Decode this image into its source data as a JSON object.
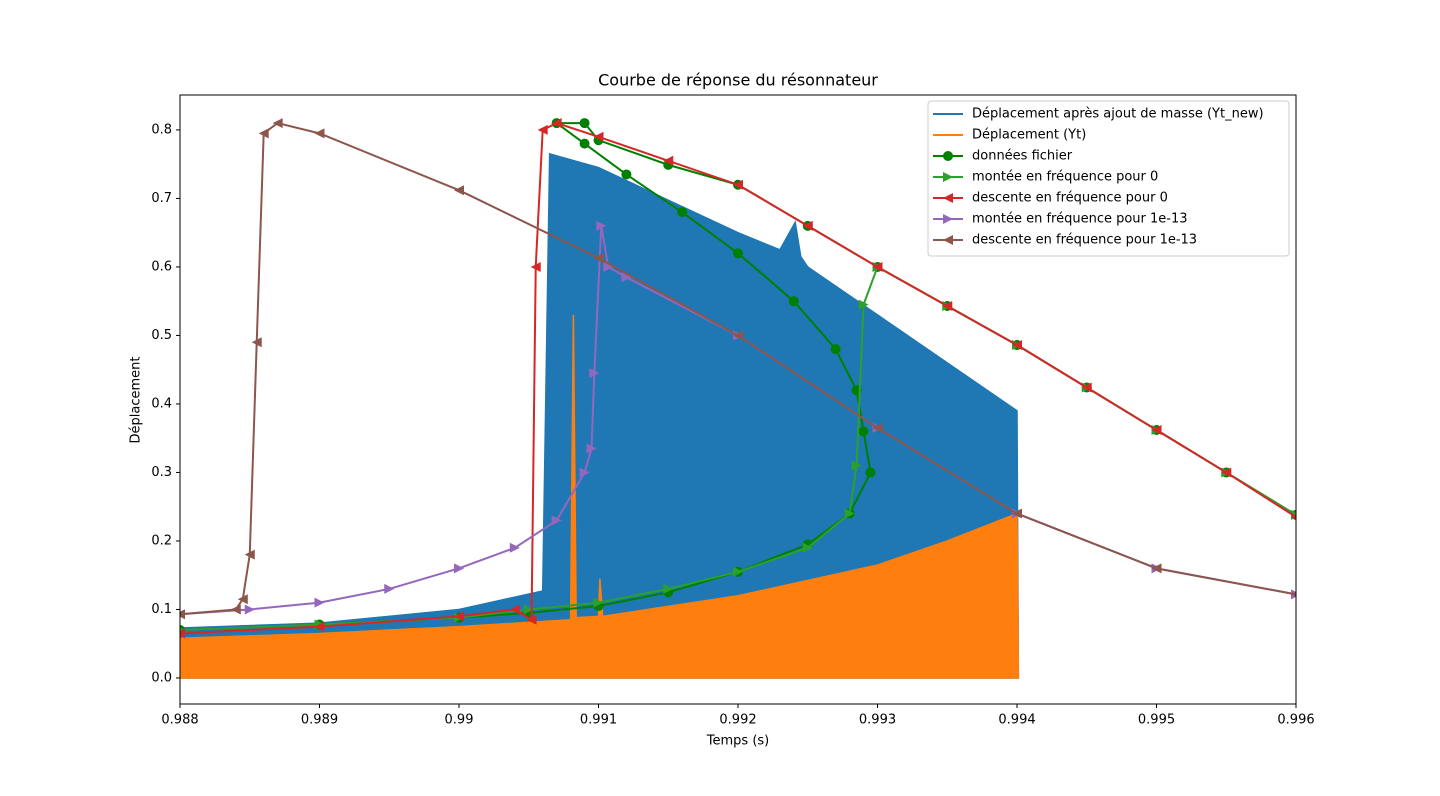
{
  "chart_data": {
    "type": "line",
    "title": "Courbe de réponse du résonnateur",
    "xlabel": "Temps (s)",
    "ylabel": "Déplacement",
    "xlim": [
      0.988,
      0.996
    ],
    "ylim": [
      -0.038,
      0.851
    ],
    "xticks": [
      0.988,
      0.989,
      0.99,
      0.991,
      0.992,
      0.993,
      0.994,
      0.995,
      0.996
    ],
    "yticks": [
      {
        "value": 0,
        "label": "0.0"
      },
      0.1,
      0.2,
      0.3,
      0.4,
      0.5,
      0.6,
      0.7,
      0.8
    ],
    "legend": "upper right",
    "series": [
      {
        "name": "Déplacement après ajout de masse (Yt_new)",
        "color": "#1f77b4",
        "marker": null,
        "fill_to_zero": true,
        "x": [
          0.988,
          0.989,
          0.99,
          0.9906,
          0.99065,
          0.991,
          0.992,
          0.9923,
          0.99241,
          0.99245,
          0.9925,
          0.993,
          0.994,
          0.99401
        ],
        "values": [
          0.073,
          0.08,
          0.1,
          0.127,
          0.765,
          0.745,
          0.65,
          0.625,
          0.665,
          0.615,
          0.6,
          0.53,
          0.39,
          0
        ]
      },
      {
        "name": "Déplacement (Yt)",
        "color": "#ff7f0e",
        "marker": null,
        "fill_to_zero": true,
        "x": [
          0.988,
          0.989,
          0.99,
          0.9908,
          0.99082,
          0.99084,
          0.991,
          0.99101,
          0.99103,
          0.992,
          0.993,
          0.9935,
          0.994,
          0.99401
        ],
        "values": [
          0.058,
          0.065,
          0.075,
          0.085,
          0.53,
          0.088,
          0.09,
          0.145,
          0.09,
          0.12,
          0.165,
          0.2,
          0.24,
          0
        ]
      },
      {
        "name": "données fichier",
        "color": "#008000",
        "marker": "o",
        "x": [
          0.988,
          0.989,
          0.99,
          0.9905,
          0.991,
          0.9915,
          0.992,
          0.9925,
          0.9928,
          0.99295,
          0.9929,
          0.99285,
          0.9927,
          0.9924,
          0.992,
          0.9916,
          0.9912,
          0.9909,
          0.9907,
          0.9909,
          0.991,
          0.9915,
          0.992,
          0.9925,
          0.993,
          0.9935,
          0.994,
          0.9945,
          0.995,
          0.9955,
          0.996
        ],
        "values": [
          0.07,
          0.078,
          0.088,
          0.095,
          0.105,
          0.125,
          0.155,
          0.195,
          0.24,
          0.3,
          0.36,
          0.42,
          0.48,
          0.55,
          0.62,
          0.68,
          0.735,
          0.78,
          0.81,
          0.81,
          0.785,
          0.749,
          0.72,
          0.66,
          0.6,
          0.543,
          0.486,
          0.424,
          0.362,
          0.3,
          0.238
        ]
      },
      {
        "name": "montée en fréquence pour 0",
        "color": "#2ca02c",
        "marker": ">",
        "x": [
          0.988,
          0.989,
          0.99,
          0.9905,
          0.991,
          0.9915,
          0.992,
          0.9925,
          0.9928,
          0.99285,
          0.9929,
          0.993,
          0.9935,
          0.994,
          0.9945,
          0.995,
          0.9955,
          0.996
        ],
        "values": [
          0.07,
          0.078,
          0.088,
          0.1,
          0.11,
          0.13,
          0.155,
          0.19,
          0.24,
          0.31,
          0.545,
          0.6,
          0.543,
          0.486,
          0.424,
          0.362,
          0.3,
          0.238
        ]
      },
      {
        "name": "descente en fréquence pour 0",
        "color": "#d62728",
        "marker": "<",
        "x": [
          0.988,
          0.989,
          0.99,
          0.9904,
          0.99052,
          0.99055,
          0.9906,
          0.9907,
          0.991,
          0.9915,
          0.992,
          0.9925,
          0.993,
          0.9935,
          0.994,
          0.9945,
          0.995,
          0.9955,
          0.996
        ],
        "values": [
          0.065,
          0.075,
          0.09,
          0.1,
          0.085,
          0.6,
          0.8,
          0.81,
          0.79,
          0.755,
          0.72,
          0.66,
          0.6,
          0.543,
          0.486,
          0.424,
          0.362,
          0.3,
          0.235
        ]
      },
      {
        "name": "montée en fréquence pour 1e-13",
        "color": "#9467bd",
        "marker": ">",
        "x": [
          0.988,
          0.9885,
          0.989,
          0.9895,
          0.99,
          0.9904,
          0.9907,
          0.9909,
          0.99095,
          0.99097,
          0.99102,
          0.99107,
          0.9912,
          0.992,
          0.993,
          0.994,
          0.995,
          0.996
        ],
        "values": [
          0.093,
          0.1,
          0.11,
          0.13,
          0.16,
          0.19,
          0.23,
          0.3,
          0.335,
          0.445,
          0.66,
          0.6,
          0.585,
          0.5,
          0.365,
          0.24,
          0.16,
          0.122
        ]
      },
      {
        "name": "descente en fréquence pour 1e-13",
        "color": "#8c564b",
        "marker": "<",
        "x": [
          0.988,
          0.9884,
          0.98845,
          0.9885,
          0.98855,
          0.9886,
          0.9887,
          0.989,
          0.99,
          0.991,
          0.992,
          0.993,
          0.994,
          0.995,
          0.996
        ],
        "values": [
          0.093,
          0.1,
          0.115,
          0.18,
          0.49,
          0.795,
          0.81,
          0.795,
          0.712,
          0.613,
          0.5,
          0.365,
          0.24,
          0.16,
          0.122
        ]
      }
    ]
  }
}
